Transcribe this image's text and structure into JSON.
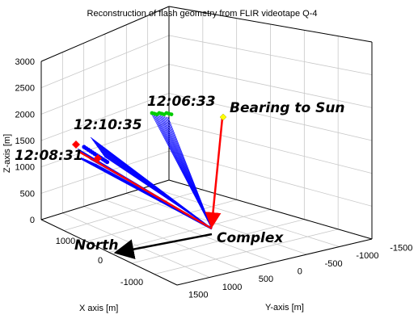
{
  "chart_data": {
    "type": "3d-line",
    "title": "Reconstruction of flash geometry from FLIR videotape Q-4",
    "xlabel": "X axis [m]",
    "ylabel": "Y-axis [m]",
    "zlabel": "Z-axis [m]",
    "x_ticks": [
      "1500",
      "1000",
      "500",
      "0",
      "-500",
      "-1000",
      "-1500"
    ],
    "y_ticks": [
      "1500",
      "1000",
      "500",
      "0",
      "-500",
      "-1000",
      "-1500"
    ],
    "z_ticks": [
      "0",
      "500",
      "1000",
      "1500",
      "2000",
      "2500",
      "3000"
    ],
    "x_tick_labels_shown": [
      "1000",
      "0",
      "-1000"
    ],
    "y_tick_labels_shown": [
      "1500",
      "1000",
      "500",
      "0",
      "-500",
      "-1000",
      "-1500"
    ],
    "zlim": [
      0,
      3000
    ],
    "grid": true,
    "annotations": [
      {
        "text": "12:06:33"
      },
      {
        "text": "Bearing to Sun"
      },
      {
        "text": "12:10:35"
      },
      {
        "text": "12:08:31"
      },
      {
        "text": "Complex"
      },
      {
        "text": "North"
      }
    ],
    "series": [
      {
        "marker": "green-circle",
        "color": "#00cc00",
        "label_ref": "12:06:33"
      },
      {
        "marker": "blue-circle",
        "color": "#0000ff",
        "label_ref": "12:10:35"
      },
      {
        "marker": "red-diamond",
        "color": "#ff0000",
        "label_ref": "12:08:31"
      },
      {
        "marker": "yellow-diamond",
        "color": "#ffff00",
        "label_ref": "Bearing to Sun"
      }
    ],
    "colors": {
      "rays": "#0000ff",
      "sun_vector": "#ff0000",
      "north_vector": "#000000",
      "green_flashes": "#00cc00",
      "sun_marker": "#ffff00"
    }
  }
}
